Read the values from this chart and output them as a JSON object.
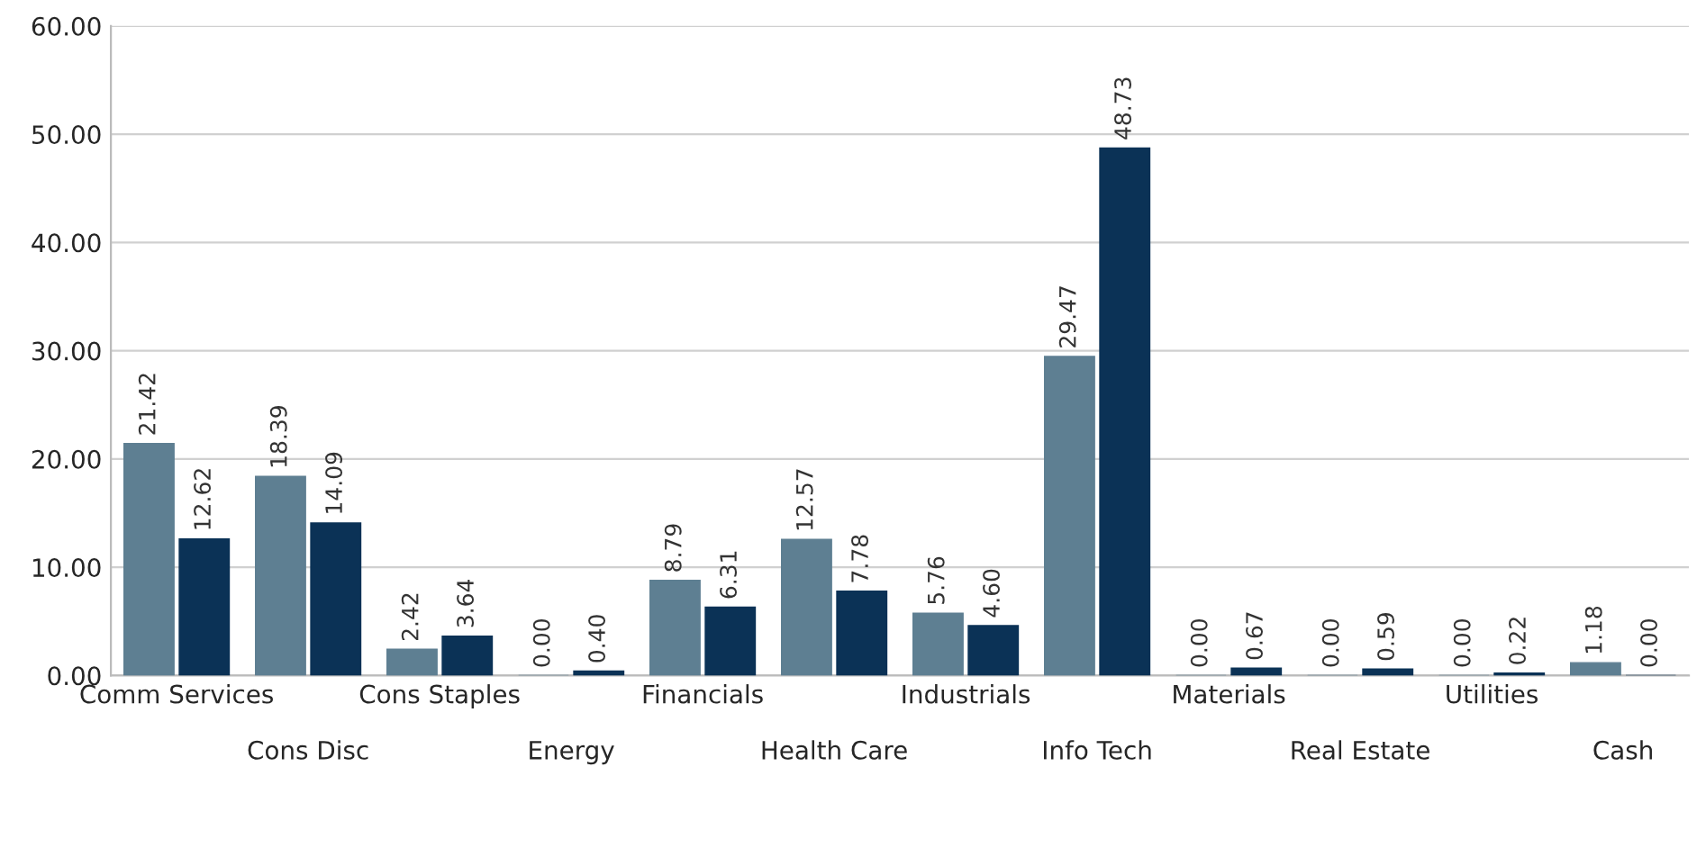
{
  "chart_data": {
    "type": "bar",
    "categories": [
      "Comm Services",
      "Cons Disc",
      "Cons Staples",
      "Energy",
      "Financials",
      "Health Care",
      "Industrials",
      "Info Tech",
      "Materials",
      "Real Estate",
      "Utilities",
      "Cash"
    ],
    "series": [
      {
        "color": "#5e7f92",
        "values": [
          21.42,
          18.39,
          2.42,
          0.0,
          8.79,
          12.57,
          5.76,
          29.47,
          0.0,
          0.0,
          0.0,
          1.18
        ],
        "value_labels": [
          "21.42",
          "18.39",
          "2.42",
          "0.00",
          "8.79",
          "12.57",
          "5.76",
          "29.47",
          "0.00",
          "0.00",
          "0.00",
          "1.18"
        ]
      },
      {
        "color": "#0b3256",
        "values": [
          12.62,
          14.09,
          3.64,
          0.4,
          6.31,
          7.78,
          4.6,
          48.73,
          0.67,
          0.59,
          0.22,
          0.0
        ],
        "value_labels": [
          "12.62",
          "14.09",
          "3.64",
          "0.40",
          "6.31",
          "7.78",
          "4.60",
          "48.73",
          "0.67",
          "0.59",
          "0.22",
          "0.00"
        ]
      }
    ],
    "ylim": [
      0,
      60
    ],
    "yticks": [
      {
        "value": 0,
        "label": "0.00"
      },
      {
        "value": 10,
        "label": "10.00"
      },
      {
        "value": 20,
        "label": "20.00"
      },
      {
        "value": 30,
        "label": "30.00"
      },
      {
        "value": 40,
        "label": "40.00"
      },
      {
        "value": 50,
        "label": "50.00"
      },
      {
        "value": 60,
        "label": "60.00"
      }
    ],
    "grid": "y"
  }
}
